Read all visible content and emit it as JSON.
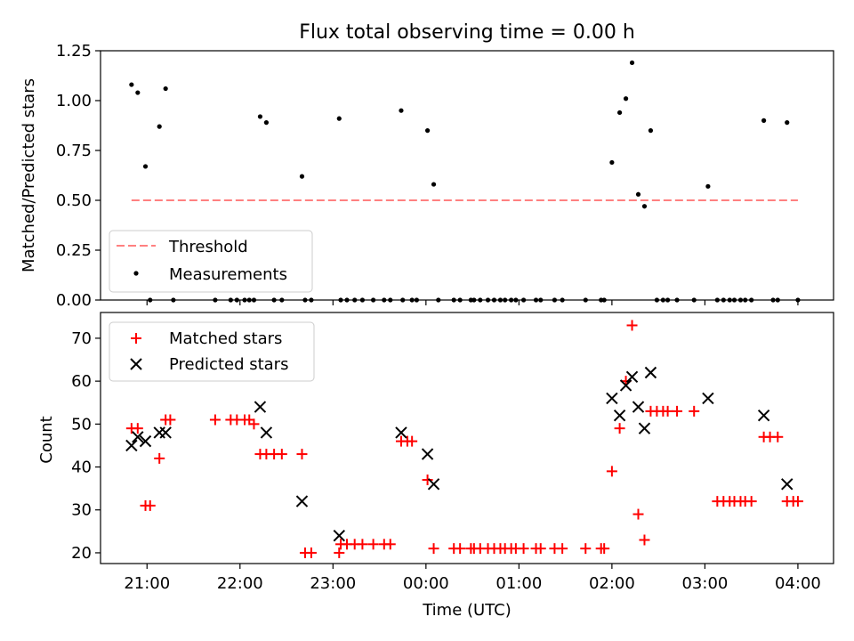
{
  "title": "Flux total observing time = 0.00 h",
  "chart_data": [
    {
      "type": "scatter",
      "ylabel": "Matched/Predicted stars",
      "ylim": [
        0,
        1.25
      ],
      "xlim": [
        "20:30",
        "04:23"
      ],
      "yticks": [
        "0.00",
        "0.25",
        "0.50",
        "0.75",
        "1.00",
        "1.25"
      ],
      "legend_position": "lower-left",
      "threshold": {
        "name": "Threshold",
        "value": 0.5,
        "from": "20:50",
        "to": "04:00",
        "color": "#ff8080",
        "style": "dashed"
      },
      "series": [
        {
          "name": "Measurements",
          "color": "#000000",
          "points": [
            [
              "20:50",
              1.08
            ],
            [
              "20:54",
              1.04
            ],
            [
              "20:59",
              0.67
            ],
            [
              "21:02",
              0
            ],
            [
              "21:08",
              0.87
            ],
            [
              "21:12",
              1.06
            ],
            [
              "21:17",
              0
            ],
            [
              "21:44",
              0
            ],
            [
              "21:54",
              0
            ],
            [
              "21:58",
              0
            ],
            [
              "22:03",
              0
            ],
            [
              "22:06",
              0
            ],
            [
              "22:09",
              0
            ],
            [
              "22:13",
              0.92
            ],
            [
              "22:17",
              0.89
            ],
            [
              "22:22",
              0
            ],
            [
              "22:27",
              0
            ],
            [
              "22:40",
              0.62
            ],
            [
              "22:42",
              0
            ],
            [
              "22:46",
              0
            ],
            [
              "23:04",
              0.91
            ],
            [
              "23:05",
              0
            ],
            [
              "23:09",
              0
            ],
            [
              "23:14",
              0
            ],
            [
              "23:19",
              0
            ],
            [
              "23:26",
              0
            ],
            [
              "23:33",
              0
            ],
            [
              "23:37",
              0
            ],
            [
              "23:44",
              0.95
            ],
            [
              "23:45",
              0
            ],
            [
              "23:51",
              0
            ],
            [
              "23:54",
              0
            ],
            [
              "00:01",
              0.85
            ],
            [
              "00:05",
              0.58
            ],
            [
              "00:08",
              0
            ],
            [
              "00:18",
              0
            ],
            [
              "00:22",
              0
            ],
            [
              "00:29",
              0
            ],
            [
              "00:31",
              0
            ],
            [
              "00:35",
              0
            ],
            [
              "00:40",
              0
            ],
            [
              "00:44",
              0
            ],
            [
              "00:48",
              0
            ],
            [
              "00:51",
              0
            ],
            [
              "00:55",
              0
            ],
            [
              "00:58",
              0
            ],
            [
              "01:03",
              0
            ],
            [
              "01:11",
              0
            ],
            [
              "01:14",
              0
            ],
            [
              "01:23",
              0
            ],
            [
              "01:28",
              0
            ],
            [
              "01:43",
              0
            ],
            [
              "01:53",
              0
            ],
            [
              "01:55",
              0
            ],
            [
              "02:00",
              0.69
            ],
            [
              "02:05",
              0.94
            ],
            [
              "02:09",
              1.01
            ],
            [
              "02:13",
              1.19
            ],
            [
              "02:17",
              0.53
            ],
            [
              "02:21",
              0.47
            ],
            [
              "02:25",
              0.85
            ],
            [
              "02:29",
              0
            ],
            [
              "02:33",
              0
            ],
            [
              "02:36",
              0
            ],
            [
              "02:42",
              0
            ],
            [
              "02:53",
              0
            ],
            [
              "03:02",
              0.57
            ],
            [
              "03:08",
              0
            ],
            [
              "03:12",
              0
            ],
            [
              "03:16",
              0
            ],
            [
              "03:19",
              0
            ],
            [
              "03:23",
              0
            ],
            [
              "03:26",
              0
            ],
            [
              "03:30",
              0
            ],
            [
              "03:38",
              0.9
            ],
            [
              "03:44",
              0
            ],
            [
              "03:47",
              0
            ],
            [
              "03:53",
              0.89
            ],
            [
              "04:00",
              0
            ]
          ]
        }
      ]
    },
    {
      "type": "scatter",
      "xlabel": "Time (UTC)",
      "ylabel": "Count",
      "ylim": [
        17.5,
        76
      ],
      "xlim": [
        "20:30",
        "04:23"
      ],
      "yticks": [
        "20",
        "30",
        "40",
        "50",
        "60",
        "70"
      ],
      "xticks": [
        "21:00",
        "22:00",
        "23:00",
        "00:00",
        "01:00",
        "02:00",
        "03:00",
        "04:00"
      ],
      "legend_position": "upper-left",
      "series": [
        {
          "name": "Matched stars",
          "color": "#ff0000",
          "marker": "+",
          "points": [
            [
              "20:50",
              49
            ],
            [
              "20:54",
              49
            ],
            [
              "20:59",
              31
            ],
            [
              "21:02",
              31
            ],
            [
              "21:08",
              42
            ],
            [
              "21:12",
              51
            ],
            [
              "21:15",
              51
            ],
            [
              "21:44",
              51
            ],
            [
              "21:54",
              51
            ],
            [
              "21:58",
              51
            ],
            [
              "22:03",
              51
            ],
            [
              "22:06",
              51
            ],
            [
              "22:09",
              50
            ],
            [
              "22:13",
              43
            ],
            [
              "22:17",
              43
            ],
            [
              "22:22",
              43
            ],
            [
              "22:27",
              43
            ],
            [
              "22:40",
              43
            ],
            [
              "22:42",
              20
            ],
            [
              "22:46",
              20
            ],
            [
              "23:04",
              20
            ],
            [
              "23:05",
              22
            ],
            [
              "23:09",
              22
            ],
            [
              "23:14",
              22
            ],
            [
              "23:19",
              22
            ],
            [
              "23:26",
              22
            ],
            [
              "23:33",
              22
            ],
            [
              "23:37",
              22
            ],
            [
              "23:44",
              46
            ],
            [
              "23:48",
              46
            ],
            [
              "23:51",
              46
            ],
            [
              "00:01",
              37
            ],
            [
              "00:05",
              21
            ],
            [
              "00:18",
              21
            ],
            [
              "00:22",
              21
            ],
            [
              "00:29",
              21
            ],
            [
              "00:31",
              21
            ],
            [
              "00:35",
              21
            ],
            [
              "00:40",
              21
            ],
            [
              "00:44",
              21
            ],
            [
              "00:48",
              21
            ],
            [
              "00:51",
              21
            ],
            [
              "00:55",
              21
            ],
            [
              "00:58",
              21
            ],
            [
              "01:03",
              21
            ],
            [
              "01:11",
              21
            ],
            [
              "01:14",
              21
            ],
            [
              "01:23",
              21
            ],
            [
              "01:28",
              21
            ],
            [
              "01:43",
              21
            ],
            [
              "01:53",
              21
            ],
            [
              "01:55",
              21
            ],
            [
              "02:00",
              39
            ],
            [
              "02:05",
              49
            ],
            [
              "02:09",
              60
            ],
            [
              "02:13",
              73
            ],
            [
              "02:17",
              29
            ],
            [
              "02:21",
              23
            ],
            [
              "02:25",
              53
            ],
            [
              "02:29",
              53
            ],
            [
              "02:33",
              53
            ],
            [
              "02:36",
              53
            ],
            [
              "02:42",
              53
            ],
            [
              "02:53",
              53
            ],
            [
              "03:08",
              32
            ],
            [
              "03:12",
              32
            ],
            [
              "03:16",
              32
            ],
            [
              "03:19",
              32
            ],
            [
              "03:23",
              32
            ],
            [
              "03:26",
              32
            ],
            [
              "03:30",
              32
            ],
            [
              "03:38",
              47
            ],
            [
              "03:42",
              47
            ],
            [
              "03:47",
              47
            ],
            [
              "03:53",
              32
            ],
            [
              "03:57",
              32
            ],
            [
              "04:00",
              32
            ]
          ]
        },
        {
          "name": "Predicted stars",
          "color": "#000000",
          "marker": "x",
          "points": [
            [
              "20:50",
              45
            ],
            [
              "20:54",
              47
            ],
            [
              "20:59",
              46
            ],
            [
              "21:08",
              48
            ],
            [
              "21:12",
              48
            ],
            [
              "22:13",
              54
            ],
            [
              "22:17",
              48
            ],
            [
              "22:40",
              32
            ],
            [
              "23:04",
              24
            ],
            [
              "23:44",
              48
            ],
            [
              "00:01",
              43
            ],
            [
              "00:05",
              36
            ],
            [
              "02:00",
              56
            ],
            [
              "02:05",
              52
            ],
            [
              "02:09",
              59
            ],
            [
              "02:13",
              61
            ],
            [
              "02:17",
              54
            ],
            [
              "02:21",
              49
            ],
            [
              "02:25",
              62
            ],
            [
              "03:02",
              56
            ],
            [
              "03:38",
              52
            ],
            [
              "03:53",
              36
            ]
          ]
        }
      ]
    }
  ]
}
